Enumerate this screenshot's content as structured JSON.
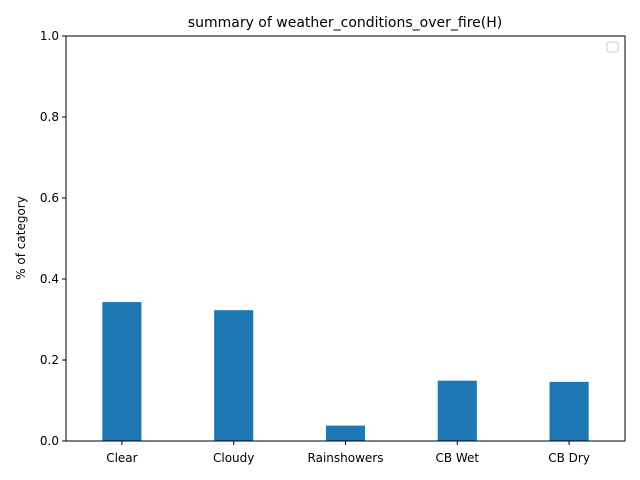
{
  "chart_data": {
    "type": "bar",
    "title": "summary of weather_conditions_over_fire(H)",
    "xlabel": "",
    "ylabel": "% of category",
    "categories": [
      "Clear",
      "Cloudy",
      "Rainshowers",
      "CB Wet",
      "CB Dry"
    ],
    "values": [
      0.343,
      0.323,
      0.038,
      0.149,
      0.146
    ],
    "ylim": [
      0,
      1.0
    ],
    "yticks": [
      "0.0",
      "0.2",
      "0.4",
      "0.6",
      "0.8",
      "1.0"
    ],
    "grid": false,
    "legend": "top-right",
    "bar_color": "#1f77b4"
  }
}
